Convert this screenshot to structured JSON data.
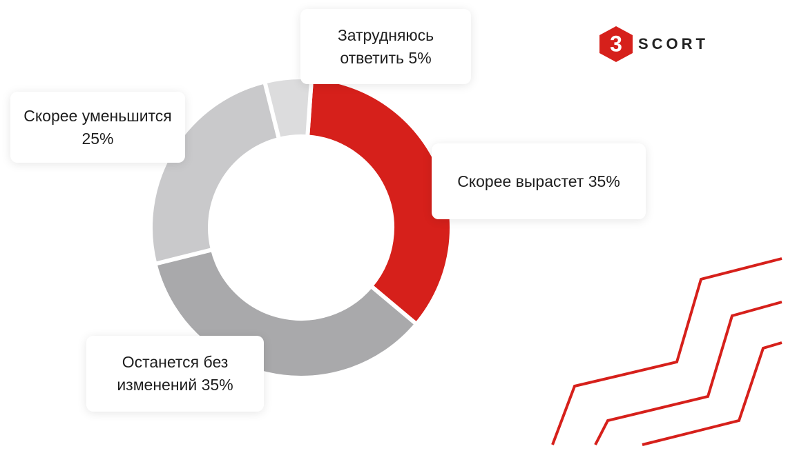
{
  "chart_data": {
    "type": "donut",
    "categories": [
      "Скорее вырастет",
      "Останется без изменений",
      "Скорее уменьшится",
      "Затрудняюсь ответить"
    ],
    "values": [
      35,
      35,
      25,
      5
    ],
    "value_labels": [
      "35%",
      "35%",
      "25%",
      "5%"
    ],
    "colors": [
      "#d6201b",
      "#a9a9ab",
      "#c9c9cb",
      "#dcdcdd"
    ]
  },
  "logo": {
    "mark": "3",
    "text": "SCORT"
  }
}
